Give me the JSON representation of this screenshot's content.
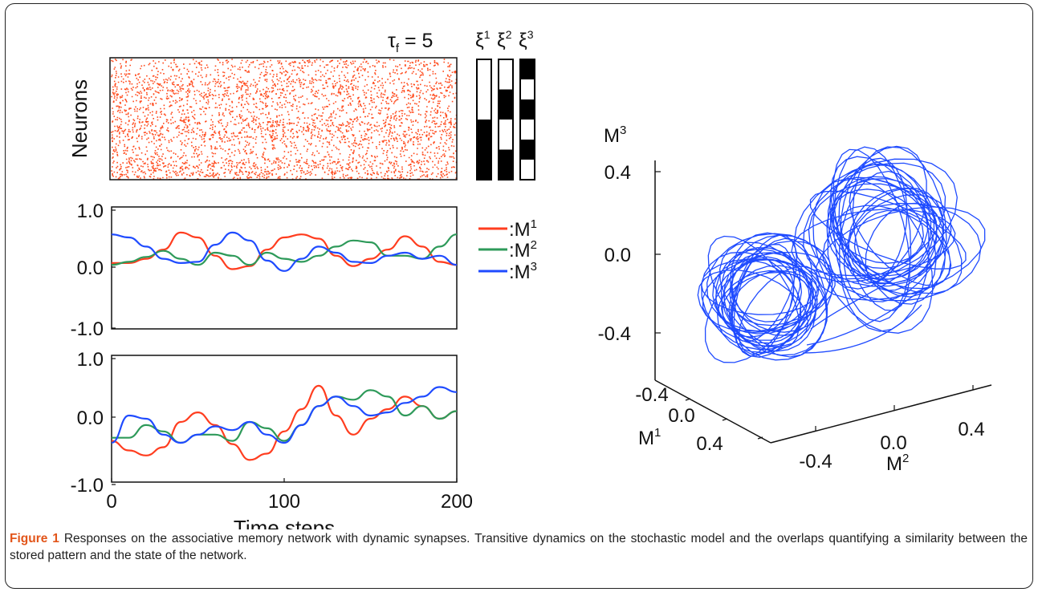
{
  "tau_label": {
    "symbol": "τ",
    "sub": "f",
    "rest": " = 5"
  },
  "raster": {
    "ylabel": "Neurons",
    "color": "#ff4a1c"
  },
  "patterns": [
    {
      "name": "ξ",
      "sup": "1",
      "cells": [
        0,
        0,
        0,
        0,
        0,
        0,
        1,
        1,
        1,
        1,
        1,
        1
      ]
    },
    {
      "name": "ξ",
      "sup": "2",
      "cells": [
        0,
        0,
        0,
        1,
        1,
        1,
        0,
        0,
        0,
        1,
        1,
        1
      ]
    },
    {
      "name": "ξ",
      "sup": "3",
      "cells": [
        1,
        1,
        0,
        0,
        1,
        1,
        0,
        0,
        1,
        1,
        0,
        0
      ]
    }
  ],
  "legend": [
    {
      "prefix": ":M",
      "sup": "1",
      "color": "#ff3d1f"
    },
    {
      "prefix": ":M",
      "sup": "2",
      "color": "#2e9a5a"
    },
    {
      "prefix": ":M",
      "sup": "3",
      "color": "#1f4bff"
    }
  ],
  "chart_data": [
    {
      "type": "line",
      "title": "",
      "xlabel": "",
      "ylabel": "",
      "xlim": [
        0,
        200
      ],
      "ylim": [
        -1.0,
        1.0
      ],
      "yticks": [
        "1.0",
        "0.0",
        "-1.0"
      ],
      "x": [
        0,
        10,
        20,
        30,
        40,
        50,
        60,
        70,
        80,
        90,
        100,
        110,
        120,
        130,
        140,
        150,
        160,
        170,
        180,
        190,
        200
      ],
      "series": [
        {
          "name": "M1",
          "color": "#ff3d1f",
          "values": [
            0.08,
            0.08,
            0.15,
            0.3,
            0.58,
            0.5,
            0.2,
            -0.02,
            0.03,
            0.3,
            0.5,
            0.55,
            0.48,
            0.2,
            0.03,
            0.15,
            0.3,
            0.52,
            0.35,
            0.1,
            0.05
          ]
        },
        {
          "name": "M2",
          "color": "#2e9a5a",
          "values": [
            0.05,
            0.1,
            0.18,
            0.28,
            0.15,
            0.05,
            0.25,
            0.2,
            0.05,
            0.25,
            0.15,
            0.1,
            0.2,
            0.35,
            0.45,
            0.42,
            0.2,
            0.2,
            0.15,
            0.35,
            0.55
          ]
        },
        {
          "name": "M3",
          "color": "#1f4bff",
          "values": [
            0.55,
            0.5,
            0.35,
            0.15,
            0.08,
            0.1,
            0.38,
            0.58,
            0.45,
            0.12,
            -0.05,
            0.15,
            0.35,
            0.25,
            0.1,
            0.08,
            0.2,
            0.25,
            0.15,
            0.2,
            0.05
          ]
        }
      ]
    },
    {
      "type": "line",
      "title": "",
      "xlabel": "Time steps",
      "ylabel": "",
      "xlim": [
        0,
        200
      ],
      "ylim": [
        -1.0,
        1.0
      ],
      "xticks": [
        "0",
        "100",
        "200"
      ],
      "yticks": [
        "1.0",
        "0.0",
        "-1.0",
        "-1.0"
      ],
      "x": [
        0,
        10,
        20,
        30,
        40,
        50,
        60,
        70,
        80,
        90,
        100,
        110,
        120,
        130,
        140,
        150,
        160,
        170,
        180,
        190,
        200
      ],
      "series": [
        {
          "name": "M1",
          "color": "#ff3d1f",
          "values": [
            -0.35,
            -0.5,
            -0.58,
            -0.45,
            -0.05,
            0.1,
            -0.1,
            -0.4,
            -0.65,
            -0.55,
            -0.2,
            0.15,
            0.52,
            0.05,
            -0.25,
            0.0,
            0.15,
            0.35,
            0.2,
            0.0,
            0.12
          ]
        },
        {
          "name": "M2",
          "color": "#2e9a5a",
          "values": [
            -0.3,
            -0.3,
            -0.1,
            -0.2,
            -0.38,
            -0.25,
            -0.25,
            -0.35,
            -0.05,
            -0.15,
            -0.35,
            -0.1,
            0.2,
            0.35,
            0.3,
            0.45,
            0.35,
            0.05,
            0.2,
            0.0,
            0.12
          ]
        },
        {
          "name": "M3",
          "color": "#1f4bff",
          "values": [
            -0.38,
            0.05,
            0.0,
            -0.25,
            -0.38,
            -0.25,
            -0.12,
            -0.18,
            -0.05,
            -0.25,
            -0.38,
            -0.1,
            0.2,
            0.35,
            0.2,
            0.05,
            0.1,
            0.25,
            0.35,
            0.5,
            0.42
          ]
        }
      ]
    },
    {
      "type": "line",
      "title": "",
      "projection": "3d",
      "axes": [
        {
          "label": "M",
          "sup": "3",
          "ticks": [
            "0.4",
            "0.0",
            "-0.4"
          ]
        },
        {
          "label": "M",
          "sup": "1",
          "ticks": [
            "-0.4",
            "0.0",
            "0.4"
          ]
        },
        {
          "label": "M",
          "sup": "2",
          "ticks": [
            "-0.4",
            "0.0",
            "0.4"
          ]
        }
      ],
      "series": [
        {
          "name": "",
          "color": "#1f4bff"
        }
      ]
    }
  ],
  "caption": {
    "label": "Figure 1",
    "text": " Responses on the associative memory network with dynamic synapses. Transitive dynamics on the stochastic model and the overlaps quantifying a similarity between the stored pattern and the state of the network."
  }
}
